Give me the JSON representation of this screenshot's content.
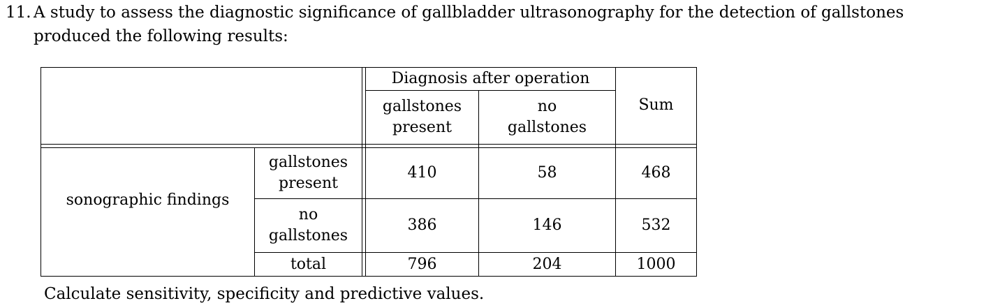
{
  "problem": {
    "number": "11.",
    "line1": "A study to assess the diagnostic significance of gallbladder ultrasonography for the detection of gallstones",
    "line2": "produced the following results:"
  },
  "table": {
    "header": {
      "diagnosis_group": "Diagnosis after operation",
      "col_gallstones_present_l1": "gallstones",
      "col_gallstones_present_l2": "present",
      "col_no_gallstones_l1": "no",
      "col_no_gallstones_l2": "gallstones",
      "col_sum": "Sum"
    },
    "row_group": "sonographic findings",
    "rows": [
      {
        "label_l1": "gallstones",
        "label_l2": "present",
        "present": "410",
        "none": "58",
        "sum": "468"
      },
      {
        "label_l1": "no",
        "label_l2": "gallstones",
        "present": "386",
        "none": "146",
        "sum": "532"
      },
      {
        "label": "total",
        "present": "796",
        "none": "204",
        "sum": "1000"
      }
    ]
  },
  "footer": "Calculate sensitivity, specificity and predictive values."
}
